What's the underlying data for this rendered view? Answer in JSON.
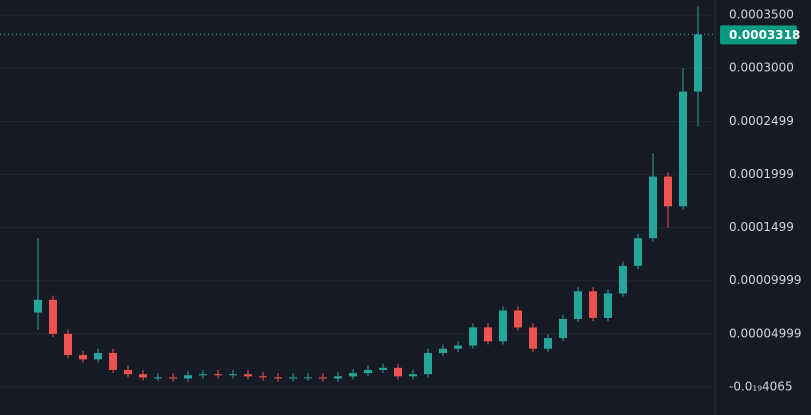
{
  "chart_data": {
    "type": "candlestick",
    "up_color": "#26a69a",
    "down_color": "#ef5350",
    "grid": true,
    "ylim": [
      -2.64e-05,
      0.0003642
    ],
    "yticks": [
      {
        "value": 0.00035,
        "label": "0.0003500"
      },
      {
        "value": 0.0003,
        "label": "0.0003000"
      },
      0.0002499,
      0.0001999,
      0.0001499,
      9.999e-05,
      4.999e-05,
      {
        "value": -4.065e-20,
        "label": "-0.0₁₉4065"
      }
    ],
    "last_price": 0.0003318,
    "series": [
      {
        "open": [
          7e-05,
          8.2e-05,
          5e-05,
          3e-05,
          2.6e-05,
          3.2e-05,
          1.6e-05,
          1.2e-05,
          9e-06,
          9e-06,
          8e-06,
          1.1e-05,
          1.2e-05,
          1.1e-05,
          1.2e-05,
          1e-05,
          9e-06,
          8e-06,
          9e-06,
          9e-06,
          8e-06,
          1e-05,
          1.3e-05,
          1.6e-05,
          1.8e-05,
          1e-05,
          1.2e-05,
          3.2e-05,
          3.6e-05,
          3.9e-05,
          5.6e-05,
          4.3e-05,
          7.2e-05,
          5.6e-05,
          3.6e-05,
          4.6e-05,
          6.4e-05,
          9e-05,
          6.5e-05,
          8.8e-05,
          0.000114,
          0.00014,
          0.000198,
          0.00017,
          0.000278
        ],
        "high": [
          0.00014,
          8.6e-05,
          5.4e-05,
          3.4e-05,
          3.6e-05,
          3.6e-05,
          2e-05,
          1.6e-05,
          1.3e-05,
          1.3e-05,
          1.5e-05,
          1.6e-05,
          1.6e-05,
          1.6e-05,
          1.6e-05,
          1.4e-05,
          1.3e-05,
          1.3e-05,
          1.3e-05,
          1.3e-05,
          1.4e-05,
          1.7e-05,
          2e-05,
          2.2e-05,
          2.2e-05,
          1.6e-05,
          3.6e-05,
          4e-05,
          4.3e-05,
          6e-05,
          6e-05,
          7.6e-05,
          7.6e-05,
          6e-05,
          5e-05,
          6.8e-05,
          9.4e-05,
          9.4e-05,
          9.2e-05,
          0.000118,
          0.000144,
          0.00022,
          0.000202,
          0.0003,
          0.000358
        ],
        "low": [
          5.4e-05,
          4.7e-05,
          2.7e-05,
          2.3e-05,
          2.3e-05,
          1.3e-05,
          9e-06,
          6e-06,
          6e-06,
          5e-06,
          5e-06,
          8e-06,
          8e-06,
          8e-06,
          7e-06,
          6e-06,
          5e-06,
          5e-06,
          6e-06,
          5e-06,
          5e-06,
          7e-06,
          1e-05,
          1.3e-05,
          7e-06,
          7e-06,
          9e-06,
          2.9e-05,
          3.3e-05,
          3.6e-05,
          4e-05,
          4e-05,
          5.3e-05,
          3.3e-05,
          3.3e-05,
          4.3e-05,
          6.1e-05,
          6.2e-05,
          6.2e-05,
          8.5e-05,
          0.000111,
          0.000137,
          0.00015,
          0.000167,
          0.000245
        ],
        "close": [
          8.2e-05,
          5e-05,
          3e-05,
          2.6e-05,
          3.2e-05,
          1.6e-05,
          1.2e-05,
          9e-06,
          9e-06,
          8e-06,
          1.1e-05,
          1.2e-05,
          1.1e-05,
          1.2e-05,
          1e-05,
          9e-06,
          8e-06,
          9e-06,
          9e-06,
          8e-06,
          1e-05,
          1.3e-05,
          1.6e-05,
          1.8e-05,
          1e-05,
          1.2e-05,
          3.2e-05,
          3.6e-05,
          3.9e-05,
          5.6e-05,
          4.3e-05,
          7.2e-05,
          5.6e-05,
          3.6e-05,
          4.6e-05,
          6.4e-05,
          9e-05,
          6.5e-05,
          8.8e-05,
          0.000114,
          0.00014,
          0.000198,
          0.00017,
          0.000278,
          0.0003318
        ]
      }
    ]
  }
}
